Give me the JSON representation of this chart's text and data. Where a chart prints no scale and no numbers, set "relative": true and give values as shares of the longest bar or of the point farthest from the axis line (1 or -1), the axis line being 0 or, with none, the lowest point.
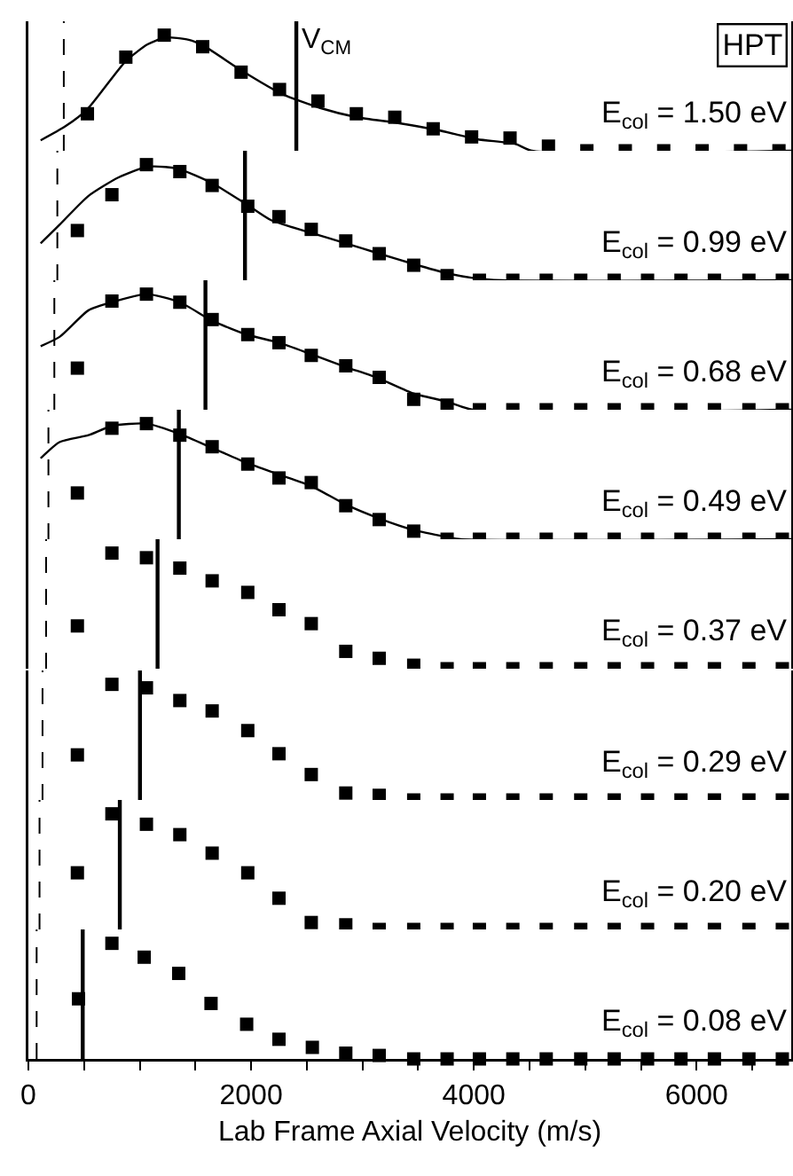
{
  "chart_data": [
    {
      "type": "scatter",
      "relative": true,
      "xlim": [
        0,
        6850
      ],
      "xticks": [
        0,
        {
          "value": 500,
          "label": null
        },
        {
          "value": 1000,
          "label": null
        },
        {
          "value": 1500,
          "label": null
        },
        2000,
        {
          "value": 2500,
          "label": null
        },
        {
          "value": 3000,
          "label": null
        },
        {
          "value": 3500,
          "label": null
        },
        4000,
        {
          "value": 4500,
          "label": null
        },
        {
          "value": 5000,
          "label": null
        },
        {
          "value": 5500,
          "label": null
        },
        6000,
        {
          "value": 6500,
          "label": null
        }
      ],
      "tick_labels": false,
      "grid": false,
      "series": [
        {
          "marker": "square",
          "color": "#000000",
          "x": [
            530,
            875,
            1220,
            1565,
            1910,
            2255,
            2600,
            2945,
            3290,
            3635,
            3980,
            4325,
            4670,
            5015,
            5360,
            5705,
            6050,
            6395,
            6740
          ],
          "values": [
            0.32,
            0.81,
            1,
            0.9,
            0.68,
            0.53,
            0.43,
            0.32,
            0.29,
            0.19,
            0.12,
            0.11,
            0.04,
            0,
            0,
            0,
            0,
            0,
            0
          ]
        },
        {
          "type": "line",
          "color": "#000000",
          "x": [
            110,
            330,
            530,
            870,
            1070,
            1230,
            1440,
            1570,
            1920,
            2280,
            2620,
            2950,
            3320,
            3670,
            4030,
            4370,
            4520,
            6850
          ],
          "values": [
            0.09,
            0.21,
            0.36,
            0.77,
            0.92,
            0.98,
            0.96,
            0.91,
            0.69,
            0.49,
            0.37,
            0.29,
            0.24,
            0.18,
            0.1,
            0.06,
            0,
            0
          ]
        }
      ],
      "ref_lines": [
        {
          "axis": "x",
          "value": 2406,
          "label": "V$_{CM}$",
          "color": "#000000",
          "line_style": "solid"
        },
        {
          "axis": "x",
          "value": 318,
          "color": "#000000",
          "line_style": "dashed"
        }
      ],
      "annotations": [
        "E$_{col}$ = 1.50 eV",
        "HPT"
      ]
    },
    {
      "type": "scatter",
      "relative": true,
      "xlim": [
        0,
        6850
      ],
      "xticks": [
        0,
        {
          "value": 500,
          "label": null
        },
        {
          "value": 1000,
          "label": null
        },
        {
          "value": 1500,
          "label": null
        },
        2000,
        {
          "value": 2500,
          "label": null
        },
        {
          "value": 3000,
          "label": null
        },
        {
          "value": 3500,
          "label": null
        },
        4000,
        {
          "value": 4500,
          "label": null
        },
        {
          "value": 5000,
          "label": null
        },
        {
          "value": 5500,
          "label": null
        },
        6000,
        {
          "value": 6500,
          "label": null
        }
      ],
      "tick_labels": false,
      "grid": false,
      "series": [
        {
          "marker": "square",
          "color": "#000000",
          "x": [
            440,
            750,
            1060,
            1360,
            1650,
            1970,
            2250,
            2540,
            2850,
            3150,
            3460,
            3760,
            4050,
            4350,
            4650,
            4960,
            5260,
            5560,
            5860,
            6160,
            6470,
            6770
          ],
          "values": [
            0.43,
            0.74,
            1,
            0.94,
            0.82,
            0.64,
            0.55,
            0.44,
            0.34,
            0.23,
            0.13,
            0.04,
            0,
            0,
            0,
            0,
            0,
            0,
            0,
            0,
            0,
            0
          ]
        },
        {
          "type": "line",
          "color": "#000000",
          "x": [
            110,
            280,
            540,
            810,
            1060,
            1230,
            1360,
            1650,
            1970,
            2180,
            2540,
            2850,
            3150,
            3460,
            3760,
            3990,
            4250,
            6850
          ],
          "values": [
            0.32,
            0.48,
            0.73,
            0.89,
            0.98,
            0.98,
            0.96,
            0.84,
            0.65,
            0.52,
            0.41,
            0.32,
            0.23,
            0.14,
            0.06,
            0.02,
            0,
            0
          ]
        }
      ],
      "ref_lines": [
        {
          "axis": "x",
          "value": 1945,
          "color": "#000000",
          "line_style": "solid"
        },
        {
          "axis": "x",
          "value": 260,
          "color": "#000000",
          "line_style": "dashed"
        }
      ],
      "annotations": [
        "E$_{col}$ = 0.99 eV"
      ]
    },
    {
      "type": "scatter",
      "relative": true,
      "xlim": [
        0,
        6850
      ],
      "xticks": [
        0,
        {
          "value": 500,
          "label": null
        },
        {
          "value": 1000,
          "label": null
        },
        {
          "value": 1500,
          "label": null
        },
        2000,
        {
          "value": 2500,
          "label": null
        },
        {
          "value": 3000,
          "label": null
        },
        {
          "value": 3500,
          "label": null
        },
        4000,
        {
          "value": 4500,
          "label": null
        },
        {
          "value": 5000,
          "label": null
        },
        {
          "value": 5500,
          "label": null
        },
        6000,
        {
          "value": 6500,
          "label": null
        }
      ],
      "tick_labels": false,
      "grid": false,
      "series": [
        {
          "marker": "square",
          "color": "#000000",
          "x": [
            440,
            750,
            1060,
            1360,
            1650,
            1970,
            2250,
            2540,
            2850,
            3150,
            3460,
            3760,
            4050,
            4350,
            4650,
            4960,
            5260,
            5560,
            5860,
            6160,
            6470,
            6770
          ],
          "values": [
            0.36,
            0.94,
            1,
            0.93,
            0.78,
            0.65,
            0.58,
            0.47,
            0.38,
            0.28,
            0.09,
            0.04,
            0,
            0,
            0,
            0,
            0,
            0,
            0,
            0,
            0,
            0
          ]
        },
        {
          "type": "line",
          "color": "#000000",
          "x": [
            110,
            280,
            540,
            750,
            1060,
            1360,
            1650,
            1960,
            2250,
            2540,
            2850,
            3150,
            3460,
            3760,
            3990,
            6850
          ],
          "values": [
            0.55,
            0.63,
            0.86,
            0.93,
            1,
            0.93,
            0.77,
            0.65,
            0.58,
            0.48,
            0.37,
            0.27,
            0.14,
            0.07,
            0,
            0
          ]
        }
      ],
      "ref_lines": [
        {
          "axis": "x",
          "value": 1590,
          "color": "#000000",
          "line_style": "solid"
        },
        {
          "axis": "x",
          "value": 233,
          "color": "#000000",
          "line_style": "dashed"
        }
      ],
      "annotations": [
        "E$_{col}$ = 0.68 eV"
      ]
    },
    {
      "type": "scatter",
      "relative": true,
      "xlim": [
        0,
        6850
      ],
      "xticks": [
        0,
        {
          "value": 500,
          "label": null
        },
        {
          "value": 1000,
          "label": null
        },
        {
          "value": 1500,
          "label": null
        },
        2000,
        {
          "value": 2500,
          "label": null
        },
        {
          "value": 3000,
          "label": null
        },
        {
          "value": 3500,
          "label": null
        },
        4000,
        {
          "value": 4500,
          "label": null
        },
        {
          "value": 5000,
          "label": null
        },
        {
          "value": 5500,
          "label": null
        },
        6000,
        {
          "value": 6500,
          "label": null
        }
      ],
      "tick_labels": false,
      "grid": false,
      "series": [
        {
          "marker": "square",
          "color": "#000000",
          "x": [
            440,
            750,
            1060,
            1360,
            1650,
            1970,
            2250,
            2540,
            2850,
            3150,
            3460,
            3760,
            4050,
            4350,
            4650,
            4960,
            5260,
            5560,
            5860,
            6160,
            6470,
            6770
          ],
          "values": [
            0.4,
            0.96,
            1,
            0.9,
            0.8,
            0.65,
            0.53,
            0.49,
            0.29,
            0.17,
            0.07,
            0,
            0,
            0,
            0,
            0,
            0,
            0,
            0,
            0,
            0,
            0
          ]
        },
        {
          "type": "line",
          "color": "#000000",
          "x": [
            110,
            280,
            540,
            750,
            1060,
            1360,
            1650,
            1960,
            2250,
            2540,
            2850,
            3150,
            3460,
            3760,
            3880,
            6850
          ],
          "values": [
            0.7,
            0.84,
            0.9,
            0.98,
            1,
            0.91,
            0.79,
            0.66,
            0.56,
            0.46,
            0.3,
            0.18,
            0.08,
            0.02,
            0,
            0
          ]
        }
      ],
      "ref_lines": [
        {
          "axis": "x",
          "value": 1351,
          "color": "#000000",
          "line_style": "solid"
        },
        {
          "axis": "x",
          "value": 180,
          "color": "#000000",
          "line_style": "dashed"
        }
      ],
      "annotations": [
        "E$_{col}$ = 0.49 eV"
      ]
    },
    {
      "type": "scatter",
      "relative": true,
      "marker": "square",
      "xlim": [
        0,
        6850
      ],
      "xticks": [
        0,
        {
          "value": 500,
          "label": null
        },
        {
          "value": 1000,
          "label": null
        },
        {
          "value": 1500,
          "label": null
        },
        2000,
        {
          "value": 2500,
          "label": null
        },
        {
          "value": 3000,
          "label": null
        },
        {
          "value": 3500,
          "label": null
        },
        4000,
        {
          "value": 4500,
          "label": null
        },
        {
          "value": 5000,
          "label": null
        },
        {
          "value": 5500,
          "label": null
        },
        6000,
        {
          "value": 6500,
          "label": null
        }
      ],
      "tick_labels": false,
      "grid": false,
      "series": [
        {
          "color": "#000000",
          "x": [
            440,
            750,
            1060,
            1360,
            1650,
            1970,
            2250,
            2540,
            2850,
            3150,
            3460,
            3760,
            4050,
            4350,
            4650,
            4960,
            5260,
            5560,
            5860,
            6160,
            6470,
            6770
          ],
          "values": [
            0.37,
            1,
            0.96,
            0.87,
            0.76,
            0.66,
            0.51,
            0.39,
            0.15,
            0.09,
            0.03,
            0,
            0,
            0,
            0,
            0,
            0,
            0,
            0,
            0,
            0,
            0
          ]
        }
      ],
      "ref_lines": [
        {
          "axis": "x",
          "value": 1160,
          "color": "#000000",
          "line_style": "solid"
        },
        {
          "axis": "x",
          "value": 159,
          "color": "#000000",
          "line_style": "dashed"
        }
      ],
      "annotations": [
        "E$_{col}$ = 0.37 eV"
      ]
    },
    {
      "type": "scatter",
      "relative": true,
      "marker": "square",
      "xlim": [
        0,
        6850
      ],
      "xticks": [
        0,
        {
          "value": 500,
          "label": null
        },
        {
          "value": 1000,
          "label": null
        },
        {
          "value": 1500,
          "label": null
        },
        2000,
        {
          "value": 2500,
          "label": null
        },
        {
          "value": 3000,
          "label": null
        },
        {
          "value": 3500,
          "label": null
        },
        4000,
        {
          "value": 4500,
          "label": null
        },
        {
          "value": 5000,
          "label": null
        },
        {
          "value": 5500,
          "label": null
        },
        6000,
        {
          "value": 6500,
          "label": null
        }
      ],
      "tick_labels": false,
      "grid": false,
      "series": [
        {
          "color": "#000000",
          "x": [
            440,
            750,
            1060,
            1360,
            1650,
            1970,
            2250,
            2540,
            2850,
            3150,
            3460,
            3760,
            4050,
            4350,
            4650,
            4960,
            5260,
            5560,
            5860,
            6160,
            6470,
            6770
          ],
          "values": [
            0.39,
            1,
            0.97,
            0.86,
            0.77,
            0.6,
            0.4,
            0.22,
            0.06,
            0.04,
            0,
            0,
            0,
            0,
            0,
            0,
            0,
            0,
            0,
            0,
            0,
            0
          ]
        }
      ],
      "ref_lines": [
        {
          "axis": "x",
          "value": 1002,
          "color": "#000000",
          "line_style": "solid"
        },
        {
          "axis": "x",
          "value": 127,
          "color": "#000000",
          "line_style": "dashed"
        }
      ],
      "annotations": [
        "E$_{col}$ = 0.29 eV"
      ]
    },
    {
      "type": "scatter",
      "relative": true,
      "marker": "square",
      "xlim": [
        0,
        6850
      ],
      "xticks": [
        0,
        {
          "value": 500,
          "label": null
        },
        {
          "value": 1000,
          "label": null
        },
        {
          "value": 1500,
          "label": null
        },
        2000,
        {
          "value": 2500,
          "label": null
        },
        {
          "value": 3000,
          "label": null
        },
        {
          "value": 3500,
          "label": null
        },
        4000,
        {
          "value": 4500,
          "label": null
        },
        {
          "value": 5000,
          "label": null
        },
        {
          "value": 5500,
          "label": null
        },
        6000,
        {
          "value": 6500,
          "label": null
        }
      ],
      "tick_labels": false,
      "grid": false,
      "series": [
        {
          "color": "#000000",
          "x": [
            440,
            750,
            1060,
            1360,
            1650,
            1970,
            2250,
            2540,
            2850,
            3150,
            3460,
            3760,
            4050,
            4350,
            4650,
            4960,
            5260,
            5560,
            5860,
            6160,
            6470,
            6770
          ],
          "values": [
            0.49,
            1,
            0.91,
            0.82,
            0.66,
            0.49,
            0.27,
            0.06,
            0.04,
            0,
            0,
            0,
            0,
            0,
            0,
            0,
            0,
            0,
            0,
            0,
            0,
            0
          ]
        }
      ],
      "ref_lines": [
        {
          "axis": "x",
          "value": 821,
          "color": "#000000",
          "line_style": "solid"
        },
        {
          "axis": "x",
          "value": 100,
          "color": "#000000",
          "line_style": "dashed"
        }
      ],
      "annotations": [
        "E$_{col}$ = 0.20 eV"
      ]
    },
    {
      "type": "scatter",
      "relative": true,
      "marker": "square",
      "xlim": [
        0,
        6850
      ],
      "xticks": [
        0,
        {
          "value": 500,
          "label": null
        },
        {
          "value": 1000,
          "label": null
        },
        {
          "value": 1500,
          "label": null
        },
        2000,
        {
          "value": 2500,
          "label": null
        },
        {
          "value": 3000,
          "label": null
        },
        {
          "value": 3500,
          "label": null
        },
        4000,
        {
          "value": 4500,
          "label": null
        },
        {
          "value": 5000,
          "label": null
        },
        {
          "value": 5500,
          "label": null
        },
        6000,
        {
          "value": 6500,
          "label": null
        }
      ],
      "tick_labels": "x",
      "grid": false,
      "xlabel": "Lab Frame Axial Velocity (m/s)",
      "series": [
        {
          "color": "#000000",
          "x": [
            450,
            750,
            1040,
            1350,
            1640,
            1960,
            2250,
            2550,
            2850,
            3150,
            3460,
            3760,
            4050,
            4350,
            4650,
            4960,
            5260,
            5560,
            5860,
            6160,
            6470,
            6770
          ],
          "values": [
            0.52,
            1,
            0.88,
            0.74,
            0.48,
            0.3,
            0.17,
            0.1,
            0.05,
            0.03,
            0,
            0,
            0,
            0,
            0,
            0,
            0,
            0,
            0,
            0,
            0,
            0
          ]
        }
      ],
      "ref_lines": [
        {
          "axis": "x",
          "value": 488,
          "color": "#000000",
          "line_style": "solid"
        },
        {
          "axis": "x",
          "value": 74,
          "color": "#000000",
          "line_style": "dashed"
        }
      ],
      "annotations": [
        "E$_{col}$ = 0.08 eV"
      ]
    }
  ]
}
